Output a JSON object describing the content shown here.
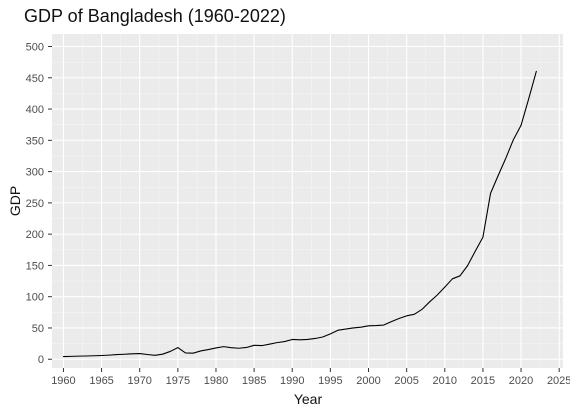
{
  "chart_data": {
    "type": "line",
    "title": "GDP of Bangladesh (1960-2022)",
    "xlabel": "Year",
    "ylabel": "GDP",
    "xlim": [
      1958.5,
      2025.5
    ],
    "ylim": [
      -14,
      520
    ],
    "x_ticks": [
      1960,
      1965,
      1970,
      1975,
      1980,
      1985,
      1990,
      1995,
      2000,
      2005,
      2010,
      2015,
      2020,
      2025
    ],
    "y_ticks": [
      0,
      50,
      100,
      150,
      200,
      250,
      300,
      350,
      400,
      450,
      500
    ],
    "x_tick_labels": [
      "1960",
      "1965",
      "1970",
      "1975",
      "1980",
      "1985",
      "1990",
      "1995",
      "2000",
      "2005",
      "2010",
      "2015",
      "2020",
      "2025"
    ],
    "y_tick_labels": [
      "0",
      "50",
      "100",
      "150",
      "200",
      "250",
      "300",
      "350",
      "400",
      "450",
      "500"
    ],
    "grid": true,
    "legend": "none",
    "colors": {
      "panel_background": "#ebebeb",
      "grid_major": "#ffffff",
      "grid_minor": "#f5f5f5",
      "tick_color": "#333333",
      "line_color": "#000000"
    },
    "series": [
      {
        "x": [
          1960,
          1961,
          1962,
          1963,
          1964,
          1965,
          1966,
          1967,
          1968,
          1969,
          1970,
          1971,
          1972,
          1973,
          1974,
          1975,
          1976,
          1977,
          1978,
          1979,
          1980,
          1981,
          1982,
          1983,
          1984,
          1985,
          1986,
          1987,
          1988,
          1989,
          1990,
          1991,
          1992,
          1993,
          1994,
          1995,
          1996,
          1997,
          1998,
          1999,
          2000,
          2001,
          2002,
          2003,
          2004,
          2005,
          2006,
          2007,
          2008,
          2009,
          2010,
          2011,
          2012,
          2013,
          2014,
          2015,
          2016,
          2017,
          2018,
          2019,
          2020,
          2021,
          2022
        ],
        "values": [
          4.3,
          4.6,
          5.0,
          5.2,
          5.6,
          6.0,
          6.6,
          7.4,
          8.0,
          8.7,
          9.1,
          7.6,
          6.3,
          8.1,
          12.5,
          18.6,
          10.1,
          9.7,
          13.3,
          15.5,
          18.1,
          20.2,
          18.4,
          17.6,
          18.8,
          22.3,
          21.8,
          24.1,
          26.6,
          28.3,
          31.6,
          31.0,
          31.7,
          33.2,
          35.6,
          40.6,
          46.4,
          48.2,
          50.0,
          51.3,
          53.4,
          53.9,
          54.7,
          60.2,
          65.1,
          69.4,
          71.8,
          79.6,
          91.6,
          102.5,
          115.3,
          128.6,
          133.4,
          149.9,
          172.9,
          195.1,
          265.2,
          293.8,
          321.4,
          351.2,
          374.0,
          416.3,
          460.2
        ]
      }
    ]
  }
}
